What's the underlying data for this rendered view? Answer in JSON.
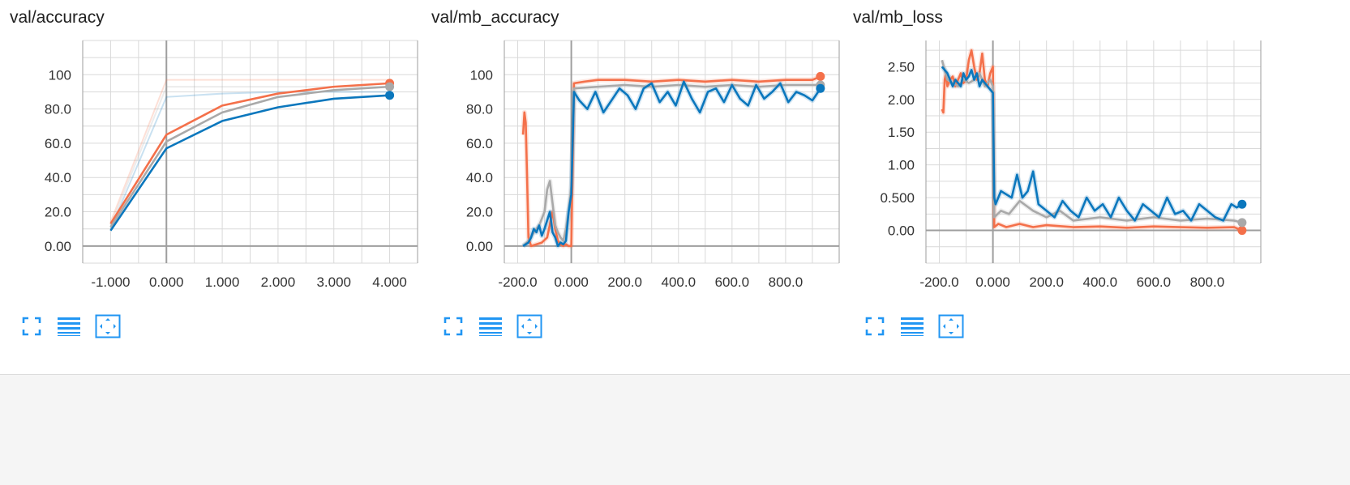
{
  "toolbar": {
    "icons": [
      "fullscreen-icon",
      "list-icon",
      "fit-domain-icon"
    ],
    "accent": "#2196f3"
  },
  "colors": {
    "orange": "#f4704a",
    "gray": "#a9a9a9",
    "blue": "#0b77bd",
    "axis": "#9e9e9e",
    "grid": "#d9d9d9"
  },
  "chart_data": [
    {
      "type": "line",
      "title": "val/accuracy",
      "xlim": [
        -1.5,
        4.5
      ],
      "ylim": [
        -10,
        120
      ],
      "x_ticks": [
        -1,
        0,
        1,
        2,
        3,
        4
      ],
      "x_tick_labels": [
        "-1.000",
        "0.000",
        "1.000",
        "2.000",
        "3.000",
        "4.000"
      ],
      "y_ticks": [
        0,
        20,
        40,
        60,
        80,
        100
      ],
      "y_tick_labels": [
        "0.00",
        "20.0",
        "40.0",
        "60.0",
        "80.0",
        "100"
      ],
      "grid": true,
      "series": [
        {
          "color": "orange",
          "x": [
            -1,
            0,
            1,
            2,
            3,
            4
          ],
          "values": [
            13,
            65,
            82,
            89,
            93,
            95
          ],
          "raw": [
            14,
            97,
            97,
            97,
            97,
            97
          ],
          "end_marker": true
        },
        {
          "color": "gray",
          "x": [
            -1,
            0,
            1,
            2,
            3,
            4
          ],
          "values": [
            11,
            61,
            78,
            87,
            91,
            93
          ],
          "raw": [
            12,
            93,
            93,
            93,
            93,
            93
          ],
          "end_marker": true
        },
        {
          "color": "blue",
          "x": [
            -1,
            0,
            1,
            2,
            3,
            4
          ],
          "values": [
            9,
            57,
            73,
            81,
            86,
            88
          ],
          "raw": [
            10,
            87,
            89,
            90,
            90,
            90
          ],
          "end_marker": true
        }
      ]
    },
    {
      "type": "line",
      "title": "val/mb_accuracy",
      "xlim": [
        -250,
        1000
      ],
      "ylim": [
        -10,
        120
      ],
      "x_ticks": [
        -200,
        0,
        200,
        400,
        600,
        800
      ],
      "x_tick_labels": [
        "-200.0",
        "0.000",
        "200.0",
        "400.0",
        "600.0",
        "800.0"
      ],
      "y_ticks": [
        0,
        20,
        40,
        60,
        80,
        100
      ],
      "y_tick_labels": [
        "0.00",
        "20.0",
        "40.0",
        "60.0",
        "80.0",
        "100"
      ],
      "grid": true,
      "series": [
        {
          "color": "orange",
          "x": [
            -180,
            -175,
            -170,
            -165,
            -160,
            -150,
            -130,
            -110,
            -90,
            -70,
            -60,
            -50,
            -40,
            -30,
            -20,
            -10,
            0,
            10,
            50,
            100,
            200,
            300,
            400,
            500,
            600,
            700,
            800,
            900,
            930
          ],
          "values": [
            65,
            78,
            72,
            40,
            5,
            0,
            1,
            2,
            5,
            20,
            10,
            3,
            1,
            0,
            1,
            0,
            0,
            95,
            96,
            97,
            97,
            96,
            97,
            96,
            97,
            96,
            97,
            97,
            99
          ],
          "end_marker": true
        },
        {
          "color": "gray",
          "x": [
            -180,
            -160,
            -140,
            -120,
            -100,
            -90,
            -80,
            -70,
            -60,
            -50,
            -40,
            -30,
            -20,
            -10,
            0,
            10,
            100,
            200,
            300,
            400,
            500,
            600,
            700,
            800,
            900,
            930
          ],
          "values": [
            0,
            3,
            8,
            12,
            20,
            33,
            38,
            25,
            12,
            8,
            5,
            3,
            10,
            20,
            35,
            92,
            93,
            94,
            93,
            94,
            93,
            94,
            93,
            94,
            94,
            94
          ],
          "end_marker": true
        },
        {
          "color": "blue",
          "x": [
            -180,
            -160,
            -150,
            -140,
            -130,
            -120,
            -110,
            -100,
            -90,
            -80,
            -70,
            -60,
            -50,
            -40,
            -30,
            -20,
            -10,
            0,
            10,
            30,
            60,
            90,
            120,
            150,
            180,
            210,
            240,
            270,
            300,
            330,
            360,
            390,
            420,
            450,
            480,
            510,
            540,
            570,
            600,
            630,
            660,
            690,
            720,
            750,
            780,
            810,
            840,
            870,
            900,
            930
          ],
          "values": [
            0,
            2,
            5,
            10,
            8,
            12,
            6,
            10,
            15,
            20,
            8,
            5,
            0,
            2,
            1,
            3,
            20,
            30,
            90,
            85,
            80,
            90,
            78,
            85,
            92,
            88,
            80,
            92,
            95,
            84,
            90,
            82,
            96,
            86,
            78,
            90,
            92,
            84,
            94,
            86,
            82,
            94,
            86,
            90,
            95,
            84,
            90,
            88,
            85,
            92
          ],
          "end_marker": true
        }
      ]
    },
    {
      "type": "line",
      "title": "val/mb_loss",
      "xlim": [
        -250,
        1000
      ],
      "ylim": [
        -0.5,
        2.9
      ],
      "x_ticks": [
        -200,
        0,
        200,
        400,
        600,
        800
      ],
      "x_tick_labels": [
        "-200.0",
        "0.000",
        "200.0",
        "400.0",
        "600.0",
        "800.0"
      ],
      "y_ticks": [
        0,
        0.5,
        1,
        1.5,
        2,
        2.5
      ],
      "y_tick_labels": [
        "0.00",
        "0.500",
        "1.00",
        "1.50",
        "2.00",
        "2.50"
      ],
      "grid": true,
      "series": [
        {
          "color": "orange",
          "x": [
            -190,
            -185,
            -180,
            -175,
            -170,
            -160,
            -150,
            -140,
            -130,
            -120,
            -110,
            -100,
            -90,
            -80,
            -70,
            -60,
            -50,
            -40,
            -30,
            -20,
            -10,
            0,
            5,
            20,
            50,
            100,
            150,
            200,
            300,
            400,
            500,
            600,
            700,
            800,
            900,
            930
          ],
          "values": [
            1.85,
            1.8,
            2.3,
            2.4,
            2.2,
            2.3,
            2.35,
            2.2,
            2.3,
            2.4,
            2.25,
            2.3,
            2.6,
            2.75,
            2.5,
            2.3,
            2.4,
            2.7,
            2.3,
            2.2,
            2.4,
            2.5,
            0.05,
            0.1,
            0.05,
            0.1,
            0.05,
            0.08,
            0.05,
            0.06,
            0.04,
            0.06,
            0.05,
            0.04,
            0.05,
            0.0
          ],
          "end_marker": true
        },
        {
          "color": "gray",
          "x": [
            -190,
            -170,
            -150,
            -130,
            -110,
            -90,
            -70,
            -50,
            -30,
            -10,
            0,
            5,
            30,
            60,
            100,
            150,
            200,
            250,
            300,
            400,
            500,
            600,
            700,
            800,
            900,
            930
          ],
          "values": [
            2.6,
            2.3,
            2.25,
            2.2,
            2.3,
            2.25,
            2.3,
            2.4,
            2.2,
            2.3,
            2.2,
            0.2,
            0.3,
            0.25,
            0.45,
            0.3,
            0.2,
            0.3,
            0.15,
            0.2,
            0.15,
            0.2,
            0.15,
            0.18,
            0.15,
            0.12
          ],
          "end_marker": true
        },
        {
          "color": "blue",
          "x": [
            -190,
            -180,
            -170,
            -160,
            -150,
            -140,
            -130,
            -120,
            -110,
            -100,
            -90,
            -80,
            -70,
            -60,
            -50,
            -40,
            -30,
            -20,
            -10,
            0,
            5,
            10,
            30,
            50,
            70,
            90,
            110,
            130,
            150,
            170,
            200,
            230,
            260,
            290,
            320,
            350,
            380,
            410,
            440,
            470,
            500,
            530,
            560,
            590,
            620,
            650,
            680,
            710,
            740,
            770,
            800,
            830,
            860,
            890,
            910,
            930
          ],
          "values": [
            2.5,
            2.45,
            2.4,
            2.3,
            2.2,
            2.3,
            2.25,
            2.2,
            2.4,
            2.3,
            2.35,
            2.45,
            2.3,
            2.4,
            2.2,
            2.3,
            2.25,
            2.2,
            2.15,
            2.1,
            0.5,
            0.4,
            0.6,
            0.55,
            0.5,
            0.85,
            0.5,
            0.6,
            0.9,
            0.4,
            0.3,
            0.2,
            0.45,
            0.3,
            0.2,
            0.5,
            0.3,
            0.4,
            0.2,
            0.5,
            0.3,
            0.15,
            0.4,
            0.3,
            0.2,
            0.5,
            0.25,
            0.3,
            0.15,
            0.4,
            0.3,
            0.2,
            0.15,
            0.4,
            0.35,
            0.4
          ],
          "end_marker": true
        }
      ]
    }
  ]
}
